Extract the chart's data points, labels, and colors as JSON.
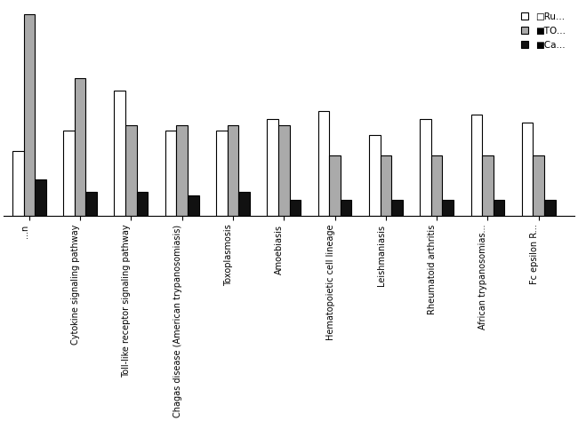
{
  "categories": [
    "...n",
    "Cytokine signaling pathway",
    "Toll-like receptor signaling pathway",
    "Chagas disease (American trypanosomiasis)",
    "Toxoplasmosis",
    "Amoebiasis",
    "Hematopoietic cell lineage",
    "Leishmaniasis",
    "Rheumatoid arthritis",
    "African trypanosomias...",
    "Fc epsilon R..."
  ],
  "Run": [
    32,
    42,
    62,
    42,
    42,
    48,
    52,
    40,
    48,
    50,
    46
  ],
  "TO": [
    100,
    68,
    45,
    45,
    45,
    45,
    30,
    30,
    30,
    30,
    30
  ],
  "Ca": [
    18,
    12,
    12,
    10,
    12,
    8,
    8,
    8,
    8,
    8,
    8
  ],
  "bar_colors": {
    "Run": "#ffffff",
    "TO": "#aaaaaa",
    "Ca": "#111111"
  },
  "bar_edgecolors": {
    "Run": "#000000",
    "TO": "#000000",
    "Ca": "#000000"
  },
  "legend_labels": [
    "Ru...",
    "TO...",
    "Ca..."
  ],
  "background_color": "#ffffff",
  "figwidth": 6.5,
  "figheight": 4.74
}
